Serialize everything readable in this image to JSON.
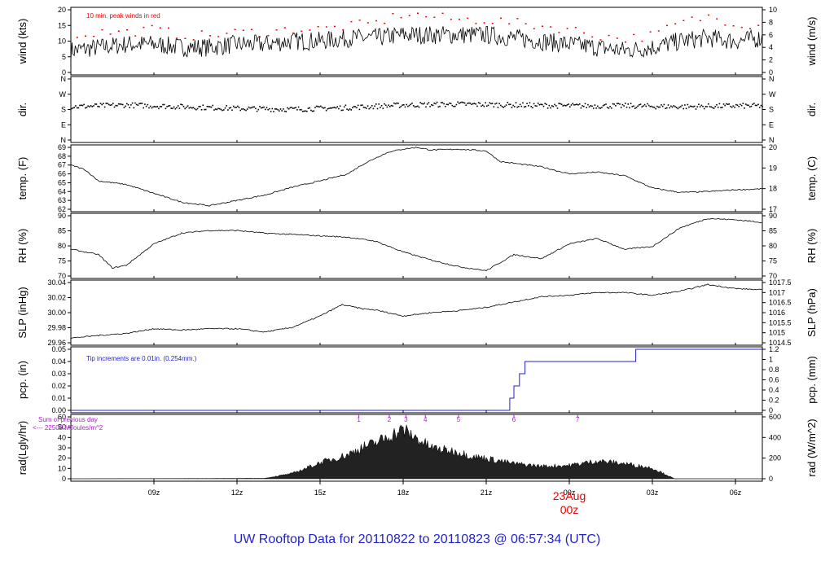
{
  "title": "UW Rooftop Data for 20110822  to  20110823 @ 06:57:34  (UTC)",
  "colors": {
    "title": "#2222cc",
    "peak": "#ee0000",
    "pcp": "#2222cc",
    "annot": "#aa22cc",
    "date": "#ee0000",
    "line": "#000000"
  },
  "x_axis": {
    "tick_labels": [
      "09z",
      "12z",
      "15z",
      "18z",
      "21z",
      "00z",
      "03z",
      "06z"
    ],
    "tick_hours": [
      9,
      12,
      15,
      18,
      21,
      24,
      27,
      30
    ],
    "xlim_hours": [
      6.0,
      30.97
    ],
    "date_label": "23Aug",
    "date_sub": "00z",
    "date_hour": 24
  },
  "panels": [
    {
      "id": "wind",
      "ylabel_left": "wind (kts)",
      "ylabel_right": "wind (m/s)",
      "left_ticks": [
        "0",
        "5",
        "10",
        "15",
        "20"
      ],
      "right_ticks": [
        "0",
        "2",
        "4",
        "6",
        "8",
        "10"
      ],
      "annotation": "10 min. peak winds in red"
    },
    {
      "id": "dir",
      "ylabel_left": "dir.",
      "ylabel_right": "dir.",
      "left_ticks": [
        "N",
        "E",
        "S",
        "W",
        "N"
      ],
      "right_ticks": [
        "N",
        "E",
        "S",
        "W",
        "N"
      ]
    },
    {
      "id": "temp",
      "ylabel_left": "temp. (F)",
      "ylabel_right": "temp. (C)",
      "left_ticks": [
        "62",
        "63",
        "64",
        "65",
        "66",
        "67",
        "68",
        "69"
      ],
      "right_ticks": [
        "17",
        "18",
        "19",
        "20"
      ]
    },
    {
      "id": "rh",
      "ylabel_left": "RH (%)",
      "ylabel_right": "RH (%)",
      "left_ticks": [
        "70",
        "75",
        "80",
        "85",
        "90"
      ],
      "right_ticks": [
        "70",
        "75",
        "80",
        "85",
        "90"
      ]
    },
    {
      "id": "slp",
      "ylabel_left": "SLP (inHg)",
      "ylabel_right": "SLP (hPa)",
      "left_ticks": [
        "29.96",
        "29.98",
        "30.00",
        "30.02",
        "30.04"
      ],
      "right_ticks": [
        "1014.5",
        "1015",
        "1015.5",
        "1016",
        "1016.5",
        "1017",
        "1017.5"
      ]
    },
    {
      "id": "pcp",
      "ylabel_left": "pcp. (in)",
      "ylabel_right": "pcp. (mm)",
      "left_ticks": [
        "0.00",
        "0.01",
        "0.02",
        "0.03",
        "0.04",
        "0.05"
      ],
      "right_ticks": [
        "0",
        "0.2",
        "0.4",
        "0.6",
        "0.8",
        "1",
        "1.2"
      ],
      "annotation": "Tip increments are 0.01in. (0.254mm.)"
    },
    {
      "id": "rad",
      "ylabel_left": "rad(Lgly/hr)",
      "ylabel_right": "rad (W/m^2)",
      "left_ticks": [
        "0",
        "10",
        "20",
        "30",
        "40",
        "50",
        "60"
      ],
      "right_ticks": [
        "0",
        "200",
        "400",
        "600"
      ],
      "annotation_lines": [
        "Sum of previous day",
        "<--- 22506 MJoules/m^2"
      ],
      "hour_marks": [
        "1",
        "2",
        "3",
        "4",
        "5",
        "6",
        "7"
      ]
    }
  ],
  "chart_data": [
    {
      "type": "line",
      "panel": "wind",
      "units": "kts",
      "ylim": [
        0,
        20
      ],
      "x_hours": [
        6,
        7,
        8,
        9,
        10,
        11,
        12,
        13,
        14,
        15,
        16,
        17,
        18,
        19,
        20,
        21,
        22,
        23,
        24,
        25,
        26,
        27,
        28,
        29,
        30,
        30.97
      ],
      "values": [
        7,
        8,
        9,
        9,
        8,
        8,
        9,
        9,
        10,
        10,
        11,
        11,
        12,
        12,
        12,
        12,
        11,
        10,
        9,
        8,
        7,
        8,
        10,
        11,
        10,
        11
      ],
      "series": [
        {
          "name": "10 min. peak winds",
          "color": "#ee0000",
          "x_hours": [
            6,
            7,
            8,
            9,
            10,
            11,
            12,
            13,
            14,
            15,
            16,
            17,
            18,
            19,
            20,
            21,
            22,
            23,
            24,
            25,
            26,
            27,
            28,
            29,
            30,
            30.97
          ],
          "values": [
            12,
            13,
            13,
            14,
            12,
            12,
            13,
            13,
            14,
            14,
            15,
            16,
            19,
            18,
            17,
            17,
            16,
            15,
            14,
            12,
            11,
            12,
            16,
            18,
            16,
            15
          ]
        }
      ]
    },
    {
      "type": "scatter",
      "panel": "dir",
      "ylim": [
        0,
        360
      ],
      "y_meaning": "degrees (0=N, 90=E, 180=S, 270=W, 360=N)",
      "x_hours": [
        6,
        8,
        10,
        12,
        14,
        16,
        18,
        20,
        22,
        24,
        26,
        28,
        30,
        30.97
      ],
      "values": [
        200,
        210,
        200,
        190,
        185,
        195,
        210,
        215,
        210,
        205,
        205,
        200,
        205,
        205
      ]
    },
    {
      "type": "line",
      "panel": "temp",
      "units": "F",
      "ylim": [
        62,
        69
      ],
      "x_hours": [
        6,
        6.5,
        7,
        8,
        9,
        10,
        11,
        12,
        13,
        14,
        15,
        16,
        16.5,
        17,
        17.5,
        18,
        18.5,
        19,
        20,
        21,
        21.5,
        22,
        23,
        24,
        25,
        26,
        27,
        28,
        29,
        30,
        30.97
      ],
      "values": [
        67,
        66.5,
        65.2,
        64.8,
        63.8,
        62.8,
        62.4,
        63.0,
        63.6,
        64.5,
        65.2,
        66.0,
        67.0,
        67.8,
        68.5,
        68.8,
        69.0,
        68.7,
        68.8,
        68.6,
        67.4,
        67.2,
        66.8,
        66.0,
        66.2,
        65.8,
        64.4,
        63.9,
        64.0,
        64.2,
        64.3
      ]
    },
    {
      "type": "line",
      "panel": "rh",
      "units": "%",
      "ylim": [
        70,
        92.5
      ],
      "x_hours": [
        6,
        7,
        7.5,
        8,
        9,
        10,
        11,
        12,
        13,
        14,
        15,
        16,
        17,
        18,
        19,
        20,
        21,
        21.5,
        22,
        23,
        24,
        25,
        26,
        27,
        28,
        29,
        30,
        30.97
      ],
      "values": [
        80,
        78,
        73,
        74,
        82,
        86,
        87,
        87,
        86,
        85.5,
        85,
        84.5,
        83,
        79,
        76,
        73.5,
        72,
        75,
        78,
        76.5,
        82,
        84,
        80,
        81,
        88,
        91.5,
        91,
        90
      ]
    },
    {
      "type": "line",
      "panel": "slp",
      "units": "inHg",
      "ylim": [
        29.955,
        30.045
      ],
      "x_hours": [
        6,
        7,
        8,
        9,
        10,
        11,
        12,
        13,
        14,
        15,
        15.8,
        16.5,
        17,
        18,
        19,
        20,
        21,
        22,
        23,
        24,
        25,
        26,
        27,
        28,
        29,
        30,
        30.97
      ],
      "values": [
        29.962,
        29.966,
        29.969,
        29.976,
        29.974,
        29.976,
        29.976,
        29.971,
        29.978,
        29.995,
        30.012,
        30.006,
        30.004,
        29.995,
        30.0,
        30.003,
        30.008,
        30.016,
        30.024,
        30.026,
        30.03,
        30.03,
        30.026,
        30.032,
        30.042,
        30.036,
        30.034
      ]
    },
    {
      "type": "line",
      "panel": "pcp",
      "units": "in",
      "ylim": [
        0,
        0.05
      ],
      "step": true,
      "x_hours": [
        6,
        21.85,
        22.0,
        22.2,
        22.4,
        22.6,
        26.4,
        30.97
      ],
      "values": [
        0.0,
        0.01,
        0.02,
        0.03,
        0.04,
        0.04,
        0.05,
        0.05
      ]
    },
    {
      "type": "area",
      "panel": "rad",
      "units": "W/m^2",
      "ylim": [
        0,
        695
      ],
      "x_hours": [
        6,
        13,
        14,
        15,
        16,
        16.5,
        17,
        17.5,
        18,
        18.5,
        19,
        19.5,
        20,
        20.5,
        21,
        22,
        23,
        24,
        25,
        26,
        27,
        27.8,
        30.97
      ],
      "values": [
        0,
        5,
        60,
        180,
        270,
        350,
        400,
        480,
        550,
        450,
        350,
        320,
        300,
        250,
        230,
        170,
        140,
        150,
        200,
        170,
        120,
        0,
        0
      ]
    }
  ]
}
